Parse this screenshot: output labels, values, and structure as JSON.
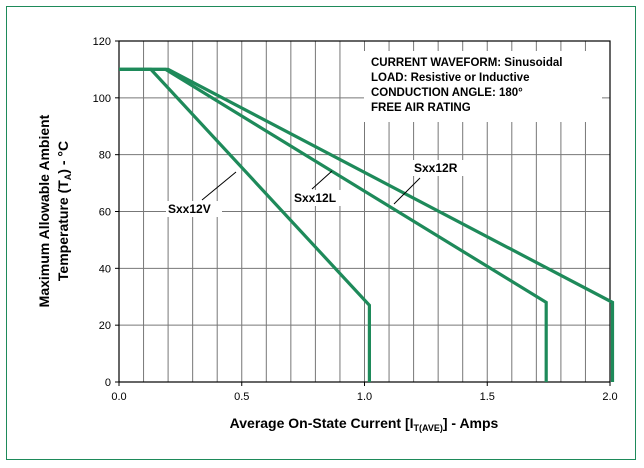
{
  "chart_data": {
    "type": "line",
    "xlabel_main": "Average On-State Current [I",
    "xlabel_sub": "T(AVE)",
    "xlabel_tail": "] - Amps",
    "ylabel_line1": "Maximum Allowable Ambient",
    "ylabel_line2_main": "Temperature (T",
    "ylabel_line2_sub": "A",
    "ylabel_line2_tail": ") - °C",
    "xlim": [
      0,
      2.0
    ],
    "ylim": [
      0,
      120
    ],
    "x_ticks": [
      "0.0",
      "0.5",
      "1.0",
      "1.5",
      "2.0"
    ],
    "y_ticks": [
      "0",
      "20",
      "40",
      "60",
      "80",
      "100",
      "120"
    ],
    "grid": true,
    "notes": [
      "CURRENT WAVEFORM: Sinusoidal",
      "LOAD: Resistive or Inductive",
      "CONDUCTION ANGLE: 180°",
      "FREE AIR RATING"
    ],
    "line_color": "#1e8a5a",
    "series": [
      {
        "name": "Sxx12V",
        "points": [
          [
            0,
            110
          ],
          [
            0.13,
            110
          ],
          [
            1.02,
            27
          ],
          [
            1.02,
            0
          ]
        ]
      },
      {
        "name": "Sxx12L",
        "points": [
          [
            0,
            110
          ],
          [
            0.19,
            110
          ],
          [
            1.74,
            28
          ],
          [
            1.74,
            0
          ]
        ]
      },
      {
        "name": "Sxx12R",
        "points": [
          [
            0,
            110
          ],
          [
            0.2,
            110
          ],
          [
            2.01,
            28
          ],
          [
            2.01,
            0
          ]
        ]
      }
    ]
  }
}
